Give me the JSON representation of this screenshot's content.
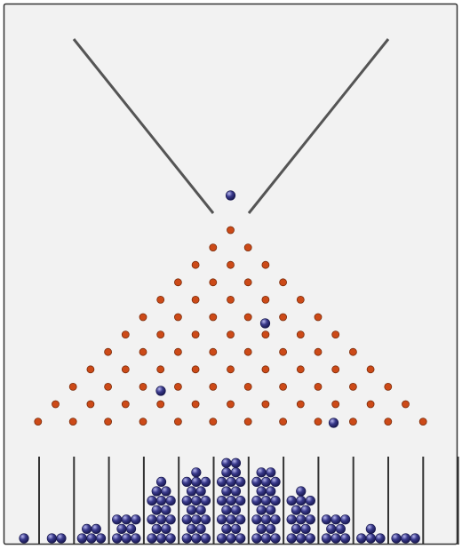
{
  "colors": {
    "background": "#f2f2f2",
    "frame": "#333333",
    "walls": "#555555",
    "peg_fill": "#cc4a18",
    "peg_stroke": "#7a2a08",
    "ball_fill": "#3a3a8c",
    "ball_highlight": "#b8b8ee",
    "ball_stroke": "#15154a"
  },
  "peg_rows": 12,
  "bins": 12,
  "bin_counts": [
    1,
    2,
    5,
    8,
    16,
    19,
    22,
    20,
    14,
    8,
    4,
    3
  ],
  "falling_balls": 4
}
